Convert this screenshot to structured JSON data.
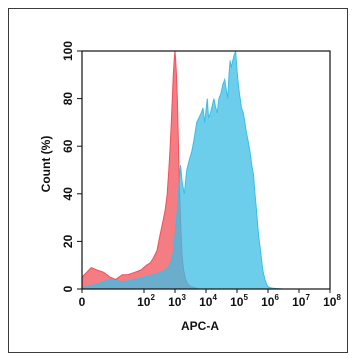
{
  "chart_data": {
    "type": "area",
    "xlabel": "APC-A",
    "ylabel": "Count (%)",
    "x_scale": "log",
    "xlim": [
      1,
      100000000
    ],
    "ylim": [
      0,
      100
    ],
    "x_ticks": [
      {
        "base": "0",
        "exp": "",
        "value": 1
      },
      {
        "base": "10",
        "exp": "2",
        "value": 100
      },
      {
        "base": "10",
        "exp": "3",
        "value": 1000
      },
      {
        "base": "10",
        "exp": "4",
        "value": 10000
      },
      {
        "base": "10",
        "exp": "5",
        "value": 100000
      },
      {
        "base": "10",
        "exp": "6",
        "value": 1000000
      },
      {
        "base": "10",
        "exp": "7",
        "value": 10000000
      },
      {
        "base": "10",
        "exp": "8",
        "value": 100000000
      }
    ],
    "y_ticks": [
      "0",
      "20",
      "40",
      "60",
      "80",
      "100"
    ],
    "y_tick_values": [
      0,
      20,
      40,
      60,
      80,
      100
    ],
    "grid": false,
    "series": [
      {
        "color": "#f0505a",
        "x": [
          1,
          2,
          3,
          5,
          8,
          12,
          20,
          30,
          50,
          80,
          120,
          160,
          200,
          260,
          320,
          400,
          480,
          560,
          630,
          700,
          760,
          820,
          880,
          950,
          1000,
          1050,
          1120,
          1200,
          1300,
          1400,
          1550,
          1700,
          1900,
          2200,
          2600,
          3200,
          4500,
          6000
        ],
        "values": [
          5,
          9,
          8,
          7,
          5,
          4,
          6,
          6,
          7,
          8,
          10,
          11,
          13,
          16,
          22,
          28,
          33,
          40,
          50,
          60,
          70,
          80,
          90,
          97,
          100,
          96,
          90,
          78,
          60,
          42,
          25,
          14,
          8,
          4,
          2,
          1,
          0.5,
          0
        ]
      },
      {
        "color": "#3cbde6",
        "x": [
          1,
          3,
          8,
          20,
          50,
          100,
          200,
          350,
          500,
          700,
          900,
          1100,
          1300,
          1500,
          1700,
          2000,
          2400,
          3000,
          3500,
          4000,
          4500,
          5000,
          6000,
          7000,
          8000,
          9000,
          10000,
          11000,
          12000,
          14000,
          16000,
          18000,
          20000,
          23000,
          26000,
          30000,
          35000,
          40000,
          45000,
          50000,
          55000,
          60000,
          65000,
          70000,
          80000,
          90000,
          100000,
          110000,
          120000,
          140000,
          160000,
          180000,
          200000,
          230000,
          260000,
          300000,
          340000,
          380000,
          420000,
          460000,
          500000,
          550000,
          600000,
          650000,
          700000,
          800000,
          900000,
          1000000,
          1200000,
          1500000,
          2000000,
          3000000
        ],
        "values": [
          0.5,
          2,
          4,
          3,
          4,
          5,
          6,
          7,
          8,
          10,
          16,
          28,
          40,
          52,
          45,
          40,
          50,
          55,
          58,
          62,
          66,
          70,
          72,
          74,
          76,
          70,
          75,
          80,
          72,
          74,
          77,
          80,
          77,
          74,
          80,
          82,
          86,
          88,
          84,
          80,
          90,
          96,
          93,
          95,
          98,
          100,
          92,
          86,
          82,
          76,
          74,
          70,
          66,
          62,
          58,
          52,
          48,
          40,
          34,
          28,
          22,
          18,
          14,
          10,
          7,
          4,
          2,
          1,
          0.5,
          0.3,
          0.2,
          0
        ]
      }
    ]
  }
}
